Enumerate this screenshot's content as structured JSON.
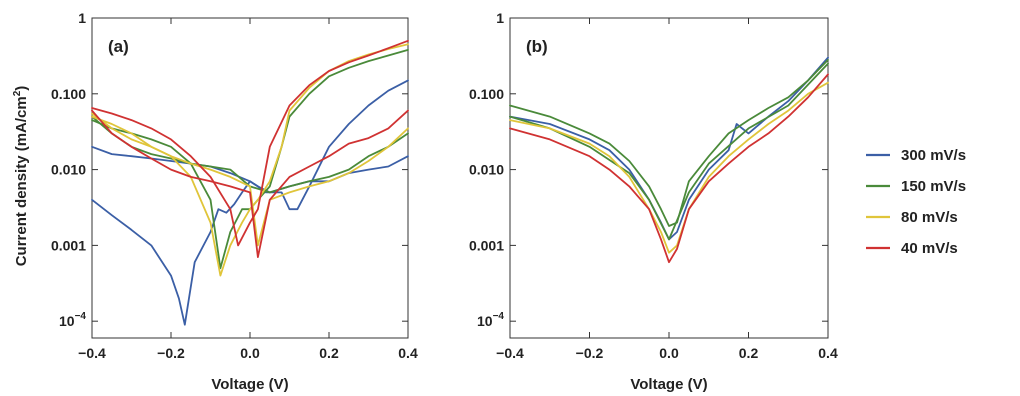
{
  "colors": {
    "300 mV/s": "#3b5fa6",
    "150 mV/s": "#4a8a3a",
    "80 mV/s": "#e0c53a",
    "40 mV/s": "#d03232"
  },
  "chart_data": [
    {
      "type": "line",
      "panel_label": "(a)",
      "xlabel": "Voltage (V)",
      "ylabel": "Current density (mA/cm",
      "ylabel_sup": "2",
      "ylabel_end": ")",
      "xlim": [
        -0.4,
        0.4
      ],
      "ylim": [
        6e-05,
        1
      ],
      "yscale": "log",
      "grid": false,
      "x_ticks": [
        {
          "value": -0.4,
          "label": "−0.4"
        },
        {
          "value": -0.2,
          "label": "−0.2"
        },
        {
          "value": 0.0,
          "label": "0.0"
        },
        {
          "value": 0.2,
          "label": "0.2"
        },
        {
          "value": 0.4,
          "label": "0.4"
        }
      ],
      "y_ticks": [
        {
          "value": 1,
          "label": "1"
        },
        {
          "value": 0.1,
          "label": "0.100"
        },
        {
          "value": 0.01,
          "label": "0.010"
        },
        {
          "value": 0.001,
          "label": "0.001"
        },
        {
          "value": 0.0001,
          "label": "10",
          "sup": "−4"
        }
      ],
      "series": [
        {
          "name": "300 mV/s",
          "x": [
            -0.4,
            -0.35,
            -0.3,
            -0.25,
            -0.2,
            -0.18,
            -0.165,
            -0.14,
            -0.1,
            -0.08,
            -0.06,
            -0.04,
            -0.02,
            0.0,
            0.02,
            0.04,
            0.06,
            0.08,
            0.1,
            0.12,
            0.15,
            0.2,
            0.25,
            0.3,
            0.35,
            0.4
          ],
          "y": [
            0.004,
            0.0025,
            0.0016,
            0.001,
            0.0004,
            0.0002,
            9e-05,
            0.0006,
            0.0015,
            0.003,
            0.0027,
            0.0035,
            0.005,
            0.007,
            0.006,
            0.005,
            0.005,
            0.005,
            0.003,
            0.003,
            0.006,
            0.02,
            0.04,
            0.07,
            0.11,
            0.15
          ]
        },
        {
          "name": "300 mV/s",
          "x": [
            -0.4,
            -0.35,
            -0.3,
            -0.25,
            -0.2,
            -0.15,
            -0.1,
            -0.05,
            0.0,
            0.02,
            0.05,
            0.1,
            0.15,
            0.2,
            0.25,
            0.3,
            0.35,
            0.4
          ],
          "y": [
            0.02,
            0.016,
            0.015,
            0.014,
            0.013,
            0.012,
            0.011,
            0.009,
            0.007,
            0.006,
            0.005,
            0.006,
            0.007,
            0.007,
            0.009,
            0.01,
            0.011,
            0.015
          ]
        },
        {
          "name": "150 mV/s",
          "x": [
            -0.4,
            -0.35,
            -0.3,
            -0.25,
            -0.2,
            -0.15,
            -0.1,
            -0.075,
            -0.05,
            -0.02,
            0.0,
            0.02,
            0.05,
            0.08,
            0.1,
            0.15,
            0.2,
            0.25,
            0.3,
            0.35,
            0.4
          ],
          "y": [
            0.045,
            0.035,
            0.03,
            0.025,
            0.02,
            0.012,
            0.004,
            0.0005,
            0.0015,
            0.003,
            0.003,
            0.004,
            0.006,
            0.02,
            0.05,
            0.1,
            0.17,
            0.22,
            0.27,
            0.32,
            0.38
          ]
        },
        {
          "name": "150 mV/s",
          "x": [
            -0.4,
            -0.35,
            -0.3,
            -0.25,
            -0.2,
            -0.15,
            -0.1,
            -0.05,
            0.0,
            0.05,
            0.1,
            0.15,
            0.2,
            0.25,
            0.3,
            0.35,
            0.4
          ],
          "y": [
            0.05,
            0.03,
            0.02,
            0.016,
            0.014,
            0.012,
            0.011,
            0.01,
            0.006,
            0.005,
            0.006,
            0.007,
            0.008,
            0.01,
            0.015,
            0.02,
            0.03
          ]
        },
        {
          "name": "80 mV/s",
          "x": [
            -0.4,
            -0.35,
            -0.3,
            -0.25,
            -0.2,
            -0.15,
            -0.1,
            -0.075,
            -0.05,
            -0.02,
            0.0,
            0.02,
            0.05,
            0.08,
            0.1,
            0.15,
            0.2,
            0.25,
            0.3,
            0.35,
            0.4
          ],
          "y": [
            0.05,
            0.04,
            0.03,
            0.02,
            0.015,
            0.008,
            0.002,
            0.0004,
            0.001,
            0.002,
            0.003,
            0.004,
            0.007,
            0.02,
            0.06,
            0.12,
            0.2,
            0.27,
            0.33,
            0.39,
            0.45
          ]
        },
        {
          "name": "80 mV/s",
          "x": [
            -0.4,
            -0.35,
            -0.3,
            -0.25,
            -0.2,
            -0.15,
            -0.1,
            -0.05,
            0.0,
            0.02,
            0.05,
            0.1,
            0.15,
            0.2,
            0.25,
            0.3,
            0.35,
            0.4
          ],
          "y": [
            0.055,
            0.035,
            0.025,
            0.02,
            0.015,
            0.012,
            0.01,
            0.008,
            0.006,
            0.001,
            0.004,
            0.005,
            0.006,
            0.007,
            0.009,
            0.013,
            0.02,
            0.035
          ]
        },
        {
          "name": "40 mV/s",
          "x": [
            -0.4,
            -0.35,
            -0.3,
            -0.25,
            -0.2,
            -0.15,
            -0.1,
            -0.05,
            -0.03,
            0.0,
            0.02,
            0.05,
            0.1,
            0.15,
            0.2,
            0.25,
            0.3,
            0.35,
            0.4
          ],
          "y": [
            0.065,
            0.055,
            0.045,
            0.035,
            0.025,
            0.015,
            0.008,
            0.003,
            0.001,
            0.002,
            0.003,
            0.02,
            0.07,
            0.13,
            0.2,
            0.26,
            0.32,
            0.4,
            0.5
          ]
        },
        {
          "name": "40 mV/s",
          "x": [
            -0.4,
            -0.35,
            -0.3,
            -0.25,
            -0.2,
            -0.15,
            -0.1,
            -0.05,
            0.0,
            0.02,
            0.05,
            0.1,
            0.15,
            0.2,
            0.25,
            0.3,
            0.35,
            0.4
          ],
          "y": [
            0.06,
            0.03,
            0.02,
            0.014,
            0.01,
            0.008,
            0.007,
            0.006,
            0.005,
            0.0007,
            0.004,
            0.008,
            0.011,
            0.015,
            0.022,
            0.026,
            0.035,
            0.06
          ]
        }
      ]
    },
    {
      "type": "line",
      "panel_label": "(b)",
      "xlabel": "Voltage (V)",
      "xlim": [
        -0.4,
        0.4
      ],
      "ylim": [
        6e-05,
        1
      ],
      "yscale": "log",
      "grid": false,
      "x_ticks": [
        {
          "value": -0.4,
          "label": "−0.4"
        },
        {
          "value": -0.2,
          "label": "−0.2"
        },
        {
          "value": 0.0,
          "label": "0.0"
        },
        {
          "value": 0.2,
          "label": "0.2"
        },
        {
          "value": 0.4,
          "label": "0.4"
        }
      ],
      "y_ticks": [
        {
          "value": 1,
          "label": "1"
        },
        {
          "value": 0.1,
          "label": "0.100"
        },
        {
          "value": 0.01,
          "label": "0.010"
        },
        {
          "value": 0.001,
          "label": "0.001"
        },
        {
          "value": 0.0001,
          "label": "10",
          "sup": "−4"
        }
      ],
      "series": [
        {
          "name": "300 mV/s",
          "x": [
            -0.4,
            -0.3,
            -0.2,
            -0.15,
            -0.1,
            -0.05,
            -0.02,
            0.0,
            0.02,
            0.05,
            0.1,
            0.15,
            0.17,
            0.2,
            0.25,
            0.3,
            0.35,
            0.4
          ],
          "y": [
            0.05,
            0.04,
            0.025,
            0.018,
            0.01,
            0.004,
            0.002,
            0.0012,
            0.0015,
            0.004,
            0.01,
            0.018,
            0.04,
            0.03,
            0.05,
            0.08,
            0.15,
            0.3
          ]
        },
        {
          "name": "150 mV/s",
          "x": [
            -0.4,
            -0.3,
            -0.2,
            -0.15,
            -0.1,
            -0.05,
            -0.02,
            0.0,
            0.02,
            0.05,
            0.1,
            0.15,
            0.2,
            0.25,
            0.3,
            0.35,
            0.4
          ],
          "y": [
            0.07,
            0.05,
            0.03,
            0.022,
            0.013,
            0.006,
            0.003,
            0.0018,
            0.002,
            0.007,
            0.015,
            0.03,
            0.045,
            0.065,
            0.09,
            0.15,
            0.28
          ]
        },
        {
          "name": "150 mV/s",
          "x": [
            -0.4,
            -0.3,
            -0.2,
            -0.1,
            -0.05,
            0.0,
            0.05,
            0.1,
            0.2,
            0.3,
            0.4
          ],
          "y": [
            0.05,
            0.035,
            0.02,
            0.009,
            0.004,
            0.0012,
            0.005,
            0.012,
            0.035,
            0.07,
            0.25
          ]
        },
        {
          "name": "80 mV/s",
          "x": [
            -0.4,
            -0.3,
            -0.2,
            -0.15,
            -0.1,
            -0.05,
            -0.02,
            0.0,
            0.02,
            0.05,
            0.1,
            0.15,
            0.2,
            0.25,
            0.3,
            0.35,
            0.4
          ],
          "y": [
            0.045,
            0.035,
            0.022,
            0.015,
            0.008,
            0.003,
            0.0015,
            0.0008,
            0.001,
            0.003,
            0.008,
            0.015,
            0.025,
            0.04,
            0.06,
            0.1,
            0.14
          ]
        },
        {
          "name": "40 mV/s",
          "x": [
            -0.4,
            -0.3,
            -0.2,
            -0.15,
            -0.1,
            -0.05,
            -0.02,
            0.0,
            0.02,
            0.05,
            0.1,
            0.15,
            0.2,
            0.25,
            0.3,
            0.35,
            0.4
          ],
          "y": [
            0.035,
            0.025,
            0.015,
            0.01,
            0.006,
            0.003,
            0.0012,
            0.0006,
            0.0009,
            0.003,
            0.007,
            0.012,
            0.02,
            0.03,
            0.05,
            0.09,
            0.18
          ]
        }
      ]
    }
  ],
  "legend": {
    "placement": "right",
    "items": [
      {
        "label": "300 mV/s",
        "color": "#3b5fa6"
      },
      {
        "label": "150 mV/s",
        "color": "#4a8a3a"
      },
      {
        "label": "80 mV/s",
        "color": "#e0c53a"
      },
      {
        "label": "40 mV/s",
        "color": "#d03232"
      }
    ]
  }
}
